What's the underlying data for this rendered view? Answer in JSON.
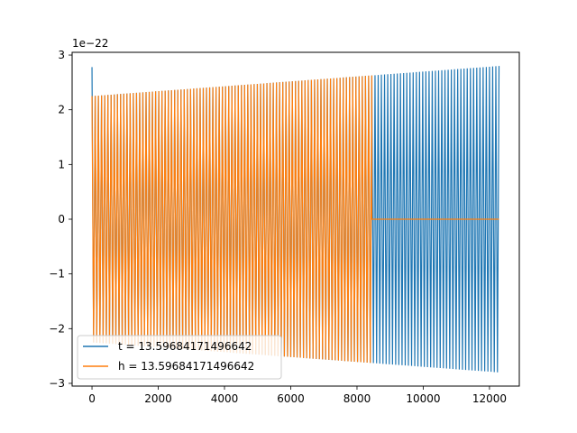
{
  "chart_data": {
    "type": "line",
    "title": "",
    "xlabel": "",
    "ylabel": "",
    "y_offset_text": "1e−22",
    "xlim": [
      -600,
      12900
    ],
    "ylim": [
      -3.05,
      3.05
    ],
    "x_ticks": [
      0,
      2000,
      4000,
      6000,
      8000,
      10000,
      12000
    ],
    "x_tick_labels": [
      "0",
      "2000",
      "4000",
      "6000",
      "8000",
      "10000",
      "12000"
    ],
    "y_ticks": [
      -3,
      -2,
      -1,
      0,
      1,
      2,
      3
    ],
    "y_tick_labels": [
      "−3",
      "−2",
      "−1",
      "0",
      "1",
      "2",
      "3"
    ],
    "grid": false,
    "legend_position": "lower-left",
    "series": [
      {
        "name": "t = 13.59684171496642",
        "color": "#1f77b4",
        "x_range": [
          0,
          12288
        ],
        "initial_spike": 2.78,
        "envelope_start": 2.25,
        "envelope_end": 2.8,
        "oscillation_period": 96
      },
      {
        "name": "h = 13.59684171496642",
        "color": "#ff7f0e",
        "x_range": [
          0,
          12288
        ],
        "active_until": 8448,
        "envelope_start": 2.25,
        "envelope_end": 2.8,
        "oscillation_period": 96,
        "value_after_active": 0
      }
    ]
  }
}
